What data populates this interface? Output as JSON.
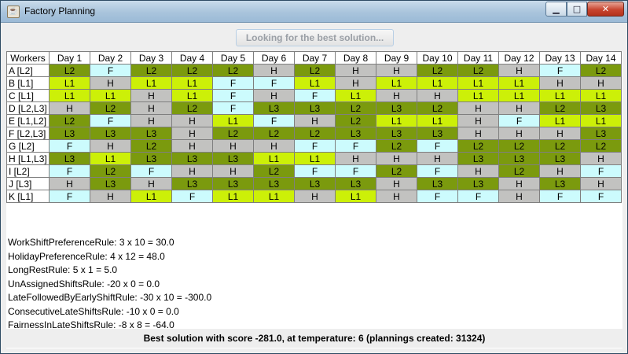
{
  "window": {
    "title": "Factory Planning"
  },
  "solve_button_label": "Looking for the best solution...",
  "grid": {
    "corner_label": "Workers",
    "days": [
      "Day 1",
      "Day 2",
      "Day 3",
      "Day 4",
      "Day 5",
      "Day 6",
      "Day 7",
      "Day 8",
      "Day 9",
      "Day 10",
      "Day 11",
      "Day 12",
      "Day 13",
      "Day 14"
    ],
    "rows": [
      {
        "worker": "A [L2]",
        "shifts": [
          "L2",
          "F",
          "L2",
          "L2",
          "L2",
          "H",
          "L2",
          "H",
          "H",
          "L2",
          "L2",
          "H",
          "F",
          "L2"
        ]
      },
      {
        "worker": "B [L1]",
        "shifts": [
          "L1",
          "H",
          "L1",
          "L1",
          "F",
          "F",
          "L1",
          "H",
          "L1",
          "L1",
          "L1",
          "L1",
          "H",
          "H"
        ]
      },
      {
        "worker": "C [L1]",
        "shifts": [
          "L1",
          "L1",
          "H",
          "L1",
          "F",
          "H",
          "F",
          "L1",
          "H",
          "H",
          "L1",
          "L1",
          "L1",
          "L1"
        ]
      },
      {
        "worker": "D [L2,L3]",
        "shifts": [
          "H",
          "L2",
          "H",
          "L2",
          "F",
          "L3",
          "L3",
          "L2",
          "L3",
          "L2",
          "H",
          "H",
          "L2",
          "L3"
        ]
      },
      {
        "worker": "E [L1,L2]",
        "shifts": [
          "L2",
          "F",
          "H",
          "H",
          "L1",
          "F",
          "H",
          "L2",
          "L1",
          "L1",
          "H",
          "F",
          "L1",
          "L1"
        ]
      },
      {
        "worker": "F [L2,L3]",
        "shifts": [
          "L3",
          "L3",
          "L3",
          "H",
          "L2",
          "L2",
          "L2",
          "L3",
          "L3",
          "L3",
          "H",
          "H",
          "H",
          "L3"
        ]
      },
      {
        "worker": "G [L2]",
        "shifts": [
          "F",
          "H",
          "L2",
          "H",
          "H",
          "H",
          "F",
          "F",
          "L2",
          "F",
          "L2",
          "L2",
          "L2",
          "L2"
        ]
      },
      {
        "worker": "H [L1,L3]",
        "shifts": [
          "L3",
          "L1",
          "L3",
          "L3",
          "L3",
          "L1",
          "L1",
          "H",
          "H",
          "H",
          "L3",
          "L3",
          "L3",
          "H"
        ]
      },
      {
        "worker": "I [L2]",
        "shifts": [
          "F",
          "L2",
          "F",
          "H",
          "H",
          "L2",
          "F",
          "F",
          "L2",
          "F",
          "H",
          "L2",
          "H",
          "F"
        ]
      },
      {
        "worker": "J [L3]",
        "shifts": [
          "H",
          "L3",
          "H",
          "L3",
          "L3",
          "L3",
          "L3",
          "L3",
          "H",
          "L3",
          "L3",
          "H",
          "L3",
          "H"
        ]
      },
      {
        "worker": "K [L1]",
        "shifts": [
          "F",
          "H",
          "L1",
          "F",
          "L1",
          "L1",
          "H",
          "L1",
          "H",
          "F",
          "F",
          "H",
          "F",
          "F"
        ]
      }
    ],
    "shift_colors": {
      "F": "#ccfbfd",
      "H": "#c2c2c0",
      "L1": "#ccf008",
      "L2": "#7b9a0e",
      "L3": "#7b9a0e"
    }
  },
  "rules": [
    "WorkShiftPreferenceRule: 3 x 10 = 30.0",
    "HolidayPreferenceRule: 4 x 12 = 48.0",
    "LongRestRule: 5 x 1 = 5.0",
    "UnAssignedShiftsRule: -20 x 0 = 0.0",
    "LateFollowedByEarlyShiftRule: -30 x 10 = -300.0",
    "ConsecutiveLateShiftsRule: -10 x 0 = 0.0",
    "FairnessInLateShiftsRule: -8 x 8 = -64.0"
  ],
  "status": "Best solution with score -281.0, at temperature: 6 (plannings created: 31324)"
}
